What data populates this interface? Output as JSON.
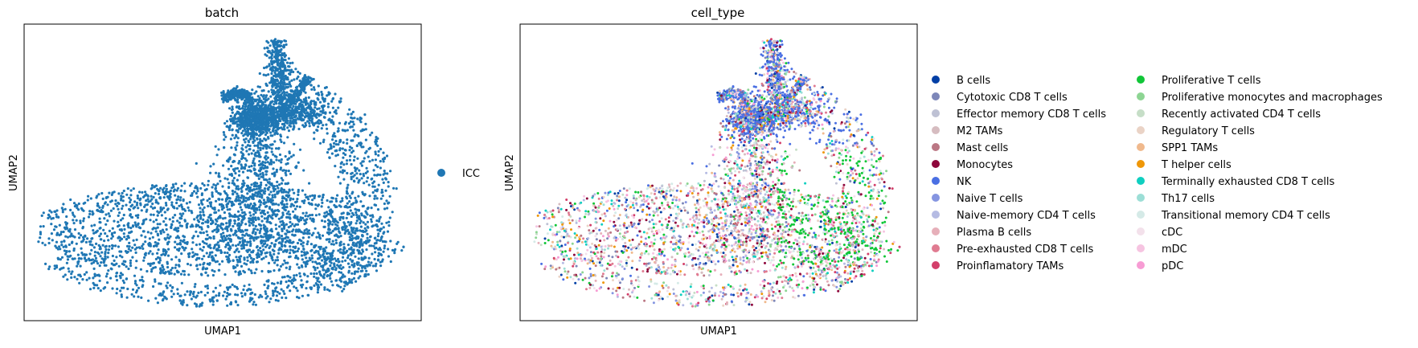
{
  "chart_data": [
    {
      "type": "scatter",
      "title": "batch",
      "xlabel": "UMAP1",
      "ylabel": "UMAP2",
      "ticks": "none",
      "grid": false,
      "legend_position": "right",
      "series": [
        {
          "name": "ICC",
          "color": "#1f77b4"
        }
      ]
    },
    {
      "type": "scatter",
      "title": "cell_type",
      "xlabel": "UMAP1",
      "ylabel": "UMAP2",
      "ticks": "none",
      "grid": false,
      "legend_position": "right",
      "legend_columns": 2,
      "series": [
        {
          "name": "B cells",
          "color": "#023fa5"
        },
        {
          "name": "Cytotoxic CD8 T cells",
          "color": "#7d87b9"
        },
        {
          "name": "Effector memory CD8 T cells",
          "color": "#bec1d4"
        },
        {
          "name": "M2 TAMs",
          "color": "#d6bcc0"
        },
        {
          "name": "Mast cells",
          "color": "#bb7784"
        },
        {
          "name": "Monocytes",
          "color": "#8e063b"
        },
        {
          "name": "NK",
          "color": "#4a6fe3"
        },
        {
          "name": "Naive T cells",
          "color": "#8595e1"
        },
        {
          "name": "Naive-memory CD4 T cells",
          "color": "#b5bbe3"
        },
        {
          "name": "Plasma B cells",
          "color": "#e6afb9"
        },
        {
          "name": "Pre-exhausted CD8 T cells",
          "color": "#e07b91"
        },
        {
          "name": "Proinflamatory TAMs",
          "color": "#d33f6a"
        },
        {
          "name": "Proliferative T cells",
          "color": "#11c638"
        },
        {
          "name": "Proliferative monocytes and macrophages",
          "color": "#8dd593"
        },
        {
          "name": "Recently activated CD4 T cells",
          "color": "#c6dec7"
        },
        {
          "name": "Regulatory T cells",
          "color": "#ead3c6"
        },
        {
          "name": "SPP1 TAMs",
          "color": "#f0b98d"
        },
        {
          "name": "T helper cells",
          "color": "#ef9708"
        },
        {
          "name": "Terminally exhausted CD8 T cells",
          "color": "#0fcfc0"
        },
        {
          "name": "Th17 cells",
          "color": "#9cded6"
        },
        {
          "name": "Transitional memory CD4 T cells",
          "color": "#d5eae7"
        },
        {
          "name": "cDC",
          "color": "#f3e1eb"
        },
        {
          "name": "mDC",
          "color": "#f6c4e1"
        },
        {
          "name": "pDC",
          "color": "#f79cd4"
        }
      ]
    }
  ]
}
